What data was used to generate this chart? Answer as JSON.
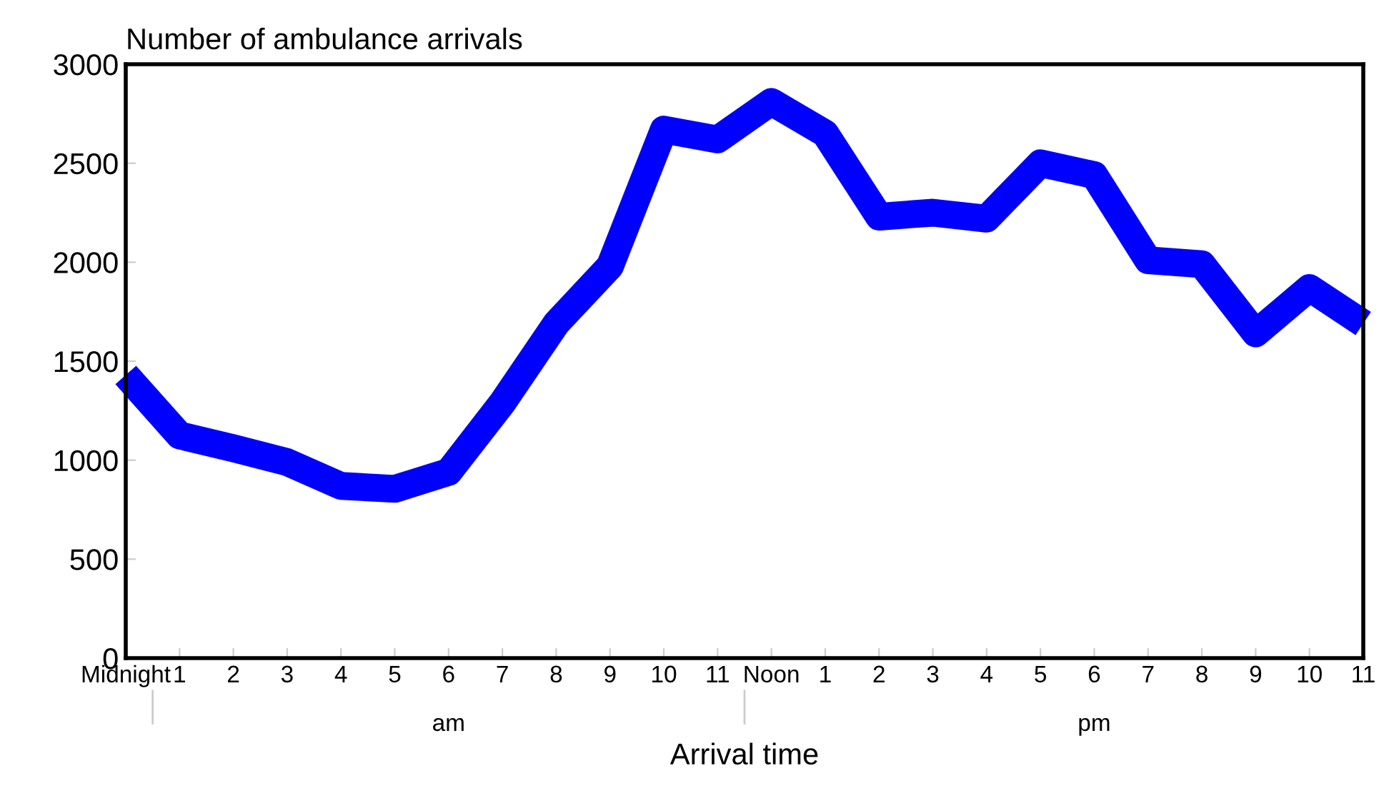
{
  "chart_data": {
    "type": "line",
    "ylabel": "Number of ambulance arrivals",
    "xlabel": "Arrival time",
    "categories": [
      "Midnight",
      "1",
      "2",
      "3",
      "4",
      "5",
      "6",
      "7",
      "8",
      "9",
      "10",
      "11",
      "Noon",
      "1",
      "2",
      "3",
      "4",
      "5",
      "6",
      "7",
      "8",
      "9",
      "10",
      "11"
    ],
    "series": [
      {
        "color": "#0000ff",
        "values": [
          1430,
          1125,
          1060,
          990,
          870,
          855,
          940,
          1290,
          1690,
          1980,
          2670,
          2620,
          2810,
          2650,
          2230,
          2250,
          2220,
          2500,
          2440,
          2010,
          1990,
          1640,
          1870,
          1690
        ]
      }
    ],
    "ylim": [
      0,
      3000
    ],
    "yticks": [
      0,
      500,
      1000,
      1500,
      2000,
      2500,
      3000
    ],
    "annotations": [
      "am",
      "pm"
    ],
    "grid": false,
    "legend": false,
    "marker": "none",
    "line_style": "solid"
  }
}
